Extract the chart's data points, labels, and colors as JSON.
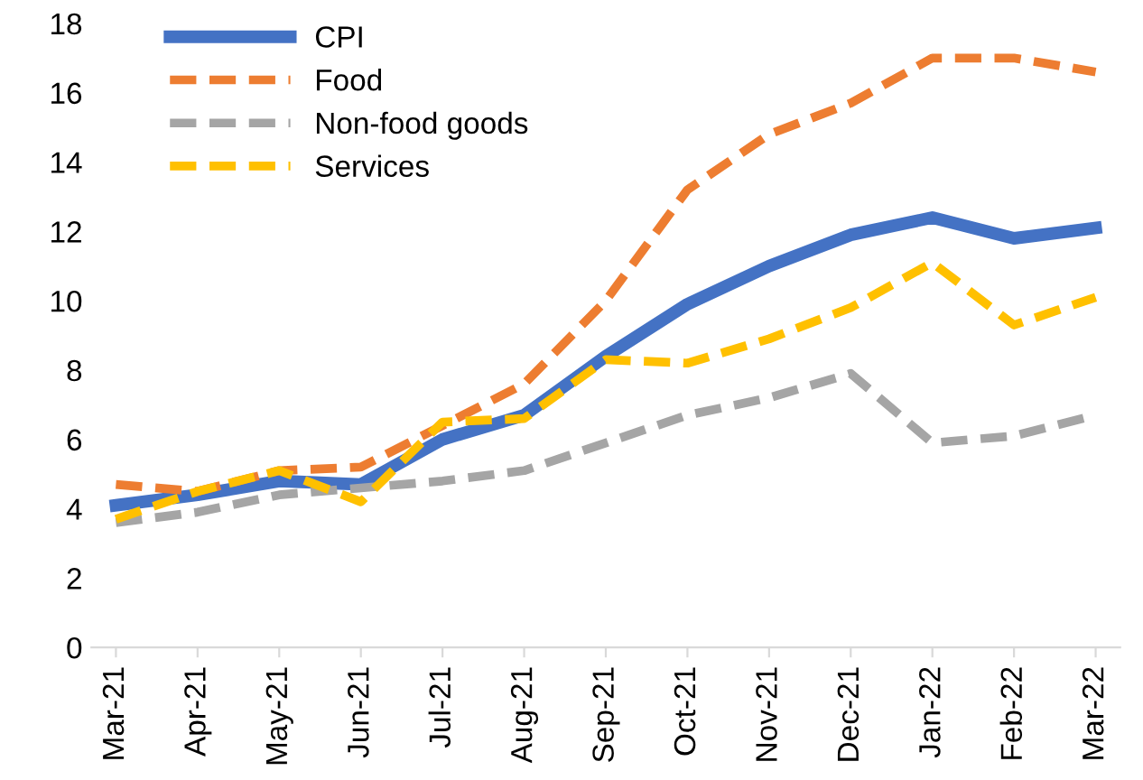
{
  "chart_data": {
    "type": "line",
    "categories": [
      "Mar-21",
      "Apr-21",
      "May-21",
      "Jun-21",
      "Jul-21",
      "Aug-21",
      "Sep-21",
      "Oct-21",
      "Nov-21",
      "Dec-21",
      "Jan-22",
      "Feb-22",
      "Mar-22"
    ],
    "series": [
      {
        "name": "CPI",
        "color": "#4472c4",
        "line_style": "solid",
        "values": [
          4.1,
          4.4,
          4.8,
          4.7,
          6.0,
          6.7,
          8.4,
          9.9,
          11.0,
          11.9,
          12.4,
          11.8,
          12.1
        ]
      },
      {
        "name": "Food",
        "color": "#ed7d31",
        "line_style": "dashed",
        "values": [
          4.7,
          4.5,
          5.1,
          5.2,
          6.4,
          7.6,
          10.0,
          13.2,
          14.8,
          15.7,
          17.0,
          17.0,
          16.6
        ]
      },
      {
        "name": "Non-food goods",
        "color": "#a5a5a5",
        "line_style": "dashed",
        "values": [
          3.6,
          3.9,
          4.4,
          4.6,
          4.8,
          5.1,
          5.9,
          6.7,
          7.2,
          7.9,
          5.9,
          6.1,
          6.7
        ]
      },
      {
        "name": "Services",
        "color": "#ffc000",
        "line_style": "dashed",
        "values": [
          3.7,
          4.5,
          5.1,
          4.2,
          6.5,
          6.6,
          8.3,
          8.2,
          8.9,
          9.8,
          11.1,
          9.3,
          10.1
        ]
      }
    ],
    "ylim": [
      0,
      18
    ],
    "yticks": [
      0,
      2,
      4,
      6,
      8,
      10,
      12,
      14,
      16,
      18
    ],
    "grid": false,
    "legend": "top left",
    "marker": "none"
  }
}
